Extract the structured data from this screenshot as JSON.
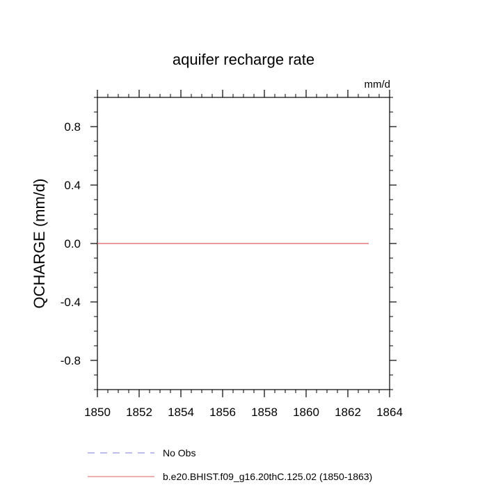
{
  "chart_data": {
    "type": "line",
    "title": "aquifer recharge rate",
    "units_label": "mm/d",
    "xlabel": "",
    "ylabel": "QCHARGE  (mm/d)",
    "xlim": [
      1850,
      1864
    ],
    "ylim": [
      -1.0,
      1.0
    ],
    "x_ticks": [
      1850,
      1852,
      1854,
      1856,
      1858,
      1860,
      1862,
      1864
    ],
    "x_tick_labels": [
      "1850",
      "1852",
      "1854",
      "1856",
      "1858",
      "1860",
      "1862",
      "1864"
    ],
    "y_ticks": [
      0.8,
      0.4,
      0.0,
      -0.4,
      -0.8
    ],
    "y_tick_labels": [
      "0.8",
      "0.4",
      "0.0",
      "-0.4",
      "-0.8"
    ],
    "grid": false,
    "legend_position": "bottom",
    "series": [
      {
        "name": "No Obs",
        "color": "#7b7bdc",
        "dash": "dashed",
        "x": [],
        "values": []
      },
      {
        "name": "b.e20.BHIST.f09_g16.20thC.125.02 (1850-1863)",
        "color": "#e06060",
        "dash": "solid",
        "x": [
          1850,
          1851,
          1852,
          1853,
          1854,
          1855,
          1856,
          1857,
          1858,
          1859,
          1860,
          1861,
          1862,
          1863
        ],
        "values": [
          0,
          0,
          0,
          0,
          0,
          0,
          0,
          0,
          0,
          0,
          0,
          0,
          0,
          0
        ]
      }
    ]
  }
}
